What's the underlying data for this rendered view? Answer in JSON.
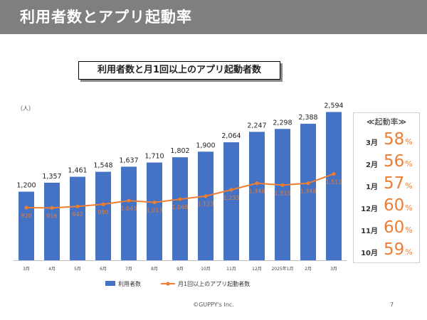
{
  "header": {
    "title": "利用者数とアプリ起動率"
  },
  "chart_data": {
    "type": "bar",
    "title": "利用者数と月1回以上のアプリ起動者数",
    "unit_label": "（人）",
    "categories": [
      "3月",
      "4月",
      "5月",
      "6月",
      "7月",
      "8月",
      "9月",
      "10月",
      "11月",
      "12月",
      "2025年1月",
      "2月",
      "3月"
    ],
    "ylim": [
      0,
      2650
    ],
    "series": [
      {
        "name": "利用者数",
        "type": "bar",
        "color": "#4472c4",
        "values": [
          1200,
          1357,
          1461,
          1548,
          1637,
          1710,
          1802,
          1900,
          2064,
          2247,
          2298,
          2388,
          2594
        ]
      },
      {
        "name": "月1回以上のアプリ起動者数",
        "type": "line",
        "color": "#ed7d31",
        "values": [
          920,
          916,
          943,
          980,
          1043,
          1013,
          1068,
          1123,
          1233,
          1348,
          1315,
          1348,
          1511
        ]
      }
    ],
    "legend_position": "bottom",
    "grid": false
  },
  "rate_panel": {
    "header": "≪起動率≫",
    "rows": [
      {
        "month": "3月",
        "value": "58",
        "unit": "%"
      },
      {
        "month": "2月",
        "value": "56",
        "unit": "%"
      },
      {
        "month": "1月",
        "value": "57",
        "unit": "%"
      },
      {
        "month": "12月",
        "value": "60",
        "unit": "%"
      },
      {
        "month": "11月",
        "value": "60",
        "unit": "%"
      },
      {
        "month": "10月",
        "value": "59",
        "unit": "%"
      }
    ]
  },
  "footer": {
    "copyright": "©GUPPY's Inc.",
    "page": "7"
  }
}
